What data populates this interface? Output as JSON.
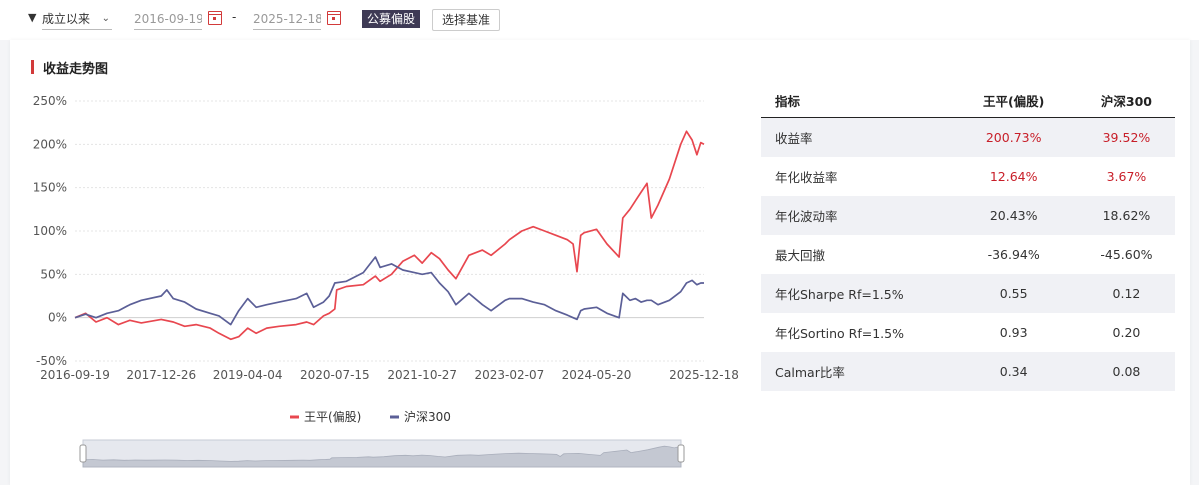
{
  "toolbar": {
    "period": "成立以来",
    "start_date": "2016-09-19",
    "end_date": "2025-12-18",
    "separator": "-",
    "fund_type_tag": "公募偏股",
    "benchmark_button": "选择基准"
  },
  "card_title": "收益走势图",
  "colors": {
    "fund": "#e8474f",
    "benchmark": "#5b5f97",
    "accent": "#d23a3a"
  },
  "chart_data": {
    "type": "line",
    "title": "收益走势图",
    "x_ticks": [
      "2016-09-19",
      "2017-12-26",
      "2019-04-04",
      "2020-07-15",
      "2021-10-27",
      "2023-02-07",
      "2024-05-20",
      "2025-12-18"
    ],
    "y_ticks": [
      "250%",
      "200%",
      "150%",
      "100%",
      "50%",
      "0%",
      "-50%"
    ],
    "ylim": [
      -50,
      250
    ],
    "xlim": [
      "2016-09-19",
      "2025-12-18"
    ],
    "grid": true,
    "legend": "bottom-center",
    "series": [
      {
        "name": "王平(偏股)",
        "color": "#e8474f",
        "points": [
          [
            "2016-09-19",
            0
          ],
          [
            "2016-11-15",
            5
          ],
          [
            "2017-01-10",
            -5
          ],
          [
            "2017-03-10",
            0
          ],
          [
            "2017-05-10",
            -8
          ],
          [
            "2017-07-10",
            -3
          ],
          [
            "2017-09-10",
            -6
          ],
          [
            "2017-12-26",
            -2
          ],
          [
            "2018-03-01",
            -5
          ],
          [
            "2018-05-01",
            -10
          ],
          [
            "2018-07-01",
            -8
          ],
          [
            "2018-09-15",
            -12
          ],
          [
            "2018-11-01",
            -18
          ],
          [
            "2019-01-03",
            -25
          ],
          [
            "2019-02-15",
            -22
          ],
          [
            "2019-04-04",
            -12
          ],
          [
            "2019-05-20",
            -18
          ],
          [
            "2019-07-15",
            -12
          ],
          [
            "2019-09-20",
            -10
          ],
          [
            "2019-12-20",
            -8
          ],
          [
            "2020-02-15",
            -5
          ],
          [
            "2020-03-23",
            -8
          ],
          [
            "2020-05-15",
            2
          ],
          [
            "2020-06-15",
            5
          ],
          [
            "2020-07-15",
            10
          ],
          [
            "2020-07-25",
            32
          ],
          [
            "2020-09-15",
            36
          ],
          [
            "2020-12-15",
            38
          ],
          [
            "2021-02-18",
            48
          ],
          [
            "2021-03-15",
            42
          ],
          [
            "2021-05-15",
            50
          ],
          [
            "2021-07-15",
            65
          ],
          [
            "2021-09-15",
            72
          ],
          [
            "2021-10-27",
            63
          ],
          [
            "2021-12-15",
            75
          ],
          [
            "2022-01-28",
            68
          ],
          [
            "2022-03-15",
            55
          ],
          [
            "2022-04-26",
            45
          ],
          [
            "2022-07-05",
            72
          ],
          [
            "2022-09-15",
            78
          ],
          [
            "2022-11-01",
            72
          ],
          [
            "2023-01-15",
            85
          ],
          [
            "2023-02-07",
            90
          ],
          [
            "2023-04-15",
            100
          ],
          [
            "2023-06-15",
            105
          ],
          [
            "2023-08-15",
            100
          ],
          [
            "2023-10-15",
            95
          ],
          [
            "2023-12-15",
            90
          ],
          [
            "2024-01-15",
            85
          ],
          [
            "2024-02-05",
            53
          ],
          [
            "2024-02-25",
            95
          ],
          [
            "2024-03-15",
            98
          ],
          [
            "2024-05-20",
            102
          ],
          [
            "2024-07-15",
            85
          ],
          [
            "2024-09-18",
            70
          ],
          [
            "2024-10-08",
            115
          ],
          [
            "2024-11-15",
            125
          ],
          [
            "2024-12-15",
            135
          ],
          [
            "2025-01-15",
            145
          ],
          [
            "2025-02-15",
            155
          ],
          [
            "2025-03-10",
            115
          ],
          [
            "2025-04-15",
            130
          ],
          [
            "2025-06-15",
            160
          ],
          [
            "2025-08-15",
            200
          ],
          [
            "2025-09-15",
            215
          ],
          [
            "2025-10-15",
            205
          ],
          [
            "2025-11-10",
            188
          ],
          [
            "2025-12-01",
            202
          ],
          [
            "2025-12-18",
            200
          ]
        ]
      },
      {
        "name": "沪深300",
        "color": "#5b5f97",
        "points": [
          [
            "2016-09-19",
            0
          ],
          [
            "2016-11-15",
            4
          ],
          [
            "2017-01-10",
            0
          ],
          [
            "2017-03-10",
            5
          ],
          [
            "2017-05-10",
            8
          ],
          [
            "2017-07-10",
            15
          ],
          [
            "2017-09-10",
            20
          ],
          [
            "2017-12-26",
            25
          ],
          [
            "2018-01-25",
            32
          ],
          [
            "2018-03-01",
            22
          ],
          [
            "2018-05-01",
            18
          ],
          [
            "2018-07-01",
            10
          ],
          [
            "2018-09-15",
            5
          ],
          [
            "2018-11-01",
            2
          ],
          [
            "2019-01-03",
            -8
          ],
          [
            "2019-02-15",
            8
          ],
          [
            "2019-04-04",
            22
          ],
          [
            "2019-05-20",
            12
          ],
          [
            "2019-07-15",
            15
          ],
          [
            "2019-09-20",
            18
          ],
          [
            "2019-12-20",
            22
          ],
          [
            "2020-02-15",
            28
          ],
          [
            "2020-03-23",
            12
          ],
          [
            "2020-05-15",
            18
          ],
          [
            "2020-06-15",
            25
          ],
          [
            "2020-07-15",
            40
          ],
          [
            "2020-09-15",
            42
          ],
          [
            "2020-12-15",
            52
          ],
          [
            "2021-02-18",
            70
          ],
          [
            "2021-03-15",
            58
          ],
          [
            "2021-05-15",
            62
          ],
          [
            "2021-07-15",
            55
          ],
          [
            "2021-09-15",
            52
          ],
          [
            "2021-10-27",
            50
          ],
          [
            "2021-12-15",
            52
          ],
          [
            "2022-01-28",
            40
          ],
          [
            "2022-03-15",
            30
          ],
          [
            "2022-04-26",
            15
          ],
          [
            "2022-07-05",
            28
          ],
          [
            "2022-09-15",
            15
          ],
          [
            "2022-11-01",
            8
          ],
          [
            "2023-01-15",
            20
          ],
          [
            "2023-02-07",
            22
          ],
          [
            "2023-04-15",
            22
          ],
          [
            "2023-06-15",
            18
          ],
          [
            "2023-08-15",
            15
          ],
          [
            "2023-10-15",
            8
          ],
          [
            "2023-12-15",
            3
          ],
          [
            "2024-01-15",
            0
          ],
          [
            "2024-02-05",
            -2
          ],
          [
            "2024-02-25",
            8
          ],
          [
            "2024-03-15",
            10
          ],
          [
            "2024-05-20",
            12
          ],
          [
            "2024-07-15",
            5
          ],
          [
            "2024-09-18",
            0
          ],
          [
            "2024-10-08",
            28
          ],
          [
            "2024-11-15",
            20
          ],
          [
            "2024-12-15",
            22
          ],
          [
            "2025-01-15",
            18
          ],
          [
            "2025-02-15",
            20
          ],
          [
            "2025-03-10",
            20
          ],
          [
            "2025-04-15",
            15
          ],
          [
            "2025-06-15",
            20
          ],
          [
            "2025-08-15",
            30
          ],
          [
            "2025-09-15",
            40
          ],
          [
            "2025-10-15",
            43
          ],
          [
            "2025-11-10",
            38
          ],
          [
            "2025-12-01",
            40
          ],
          [
            "2025-12-18",
            40
          ]
        ]
      }
    ]
  },
  "metrics_table": {
    "headers": [
      "指标",
      "王平(偏股)",
      "沪深300"
    ],
    "rows": [
      {
        "label": "收益率",
        "fund": "200.73%",
        "bench": "39.52%",
        "highlight": true
      },
      {
        "label": "年化收益率",
        "fund": "12.64%",
        "bench": "3.67%",
        "highlight": true
      },
      {
        "label": "年化波动率",
        "fund": "20.43%",
        "bench": "18.62%",
        "highlight": false
      },
      {
        "label": "最大回撤",
        "fund": "-36.94%",
        "bench": "-45.60%",
        "highlight": false
      },
      {
        "label": "年化Sharpe Rf=1.5%",
        "fund": "0.55",
        "bench": "0.12",
        "highlight": false
      },
      {
        "label": "年化Sortino Rf=1.5%",
        "fund": "0.93",
        "bench": "0.20",
        "highlight": false
      },
      {
        "label": "Calmar比率",
        "fund": "0.34",
        "bench": "0.08",
        "highlight": false
      }
    ]
  }
}
